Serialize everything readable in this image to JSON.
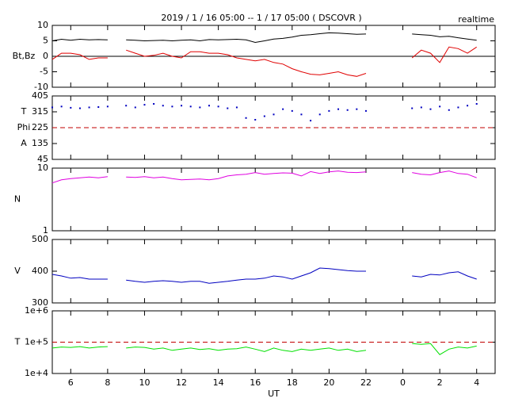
{
  "chart_data": [
    {
      "type": "line",
      "title": "2019 / 1 / 16  05:00 -- 1 / 17  05:00 ( DSCOVR )",
      "annotation": "realtime",
      "ylabel": [
        "Bt,Bz"
      ],
      "ylim": [
        -10,
        10
      ],
      "yticks": [
        10,
        5,
        0,
        -5,
        -10
      ],
      "zero_line": true,
      "series": [
        {
          "color": "#000000",
          "values": [
            5,
            5.5,
            5.2,
            5.5,
            5.3,
            5.4,
            5.3,
            null,
            5.3,
            5.2,
            5,
            5.1,
            5.2,
            5,
            5.2,
            5.3,
            5,
            5.4,
            5.3,
            5.4,
            5.5,
            5.3,
            4.5,
            5,
            5.6,
            5.8,
            6.2,
            6.8,
            7,
            7.3,
            7.6,
            7.5,
            7.3,
            7.1,
            7.2,
            null,
            null,
            null,
            null,
            7.2,
            7,
            6.8,
            6.3,
            6.5,
            6,
            5.6,
            5.2
          ]
        },
        {
          "color": "#e00000",
          "values": [
            -1,
            1,
            1,
            0.5,
            -1,
            -0.5,
            -0.5,
            null,
            2,
            1,
            0,
            0.3,
            1,
            0,
            -0.5,
            1.5,
            1.5,
            1,
            1,
            0.5,
            -0.5,
            -1,
            -1.5,
            -1,
            -2,
            -2.5,
            -4,
            -5,
            -5.8,
            -6,
            -5.5,
            -5,
            -6,
            -6.5,
            -5.5,
            null,
            null,
            null,
            null,
            -0.5,
            2,
            1,
            -2,
            3,
            2.5,
            1,
            3
          ]
        }
      ]
    },
    {
      "type": "scatter",
      "ylabel": [
        "T",
        "Phi",
        "A"
      ],
      "ylim": [
        45,
        405
      ],
      "yticks": [
        405,
        315,
        225,
        135,
        45
      ],
      "hline": 225,
      "hline_color": "#c00000",
      "series": [
        {
          "color": "#0000c0",
          "values": [
            340,
            345,
            338,
            335,
            340,
            342,
            345,
            null,
            350,
            340,
            355,
            360,
            350,
            345,
            350,
            345,
            340,
            350,
            345,
            335,
            340,
            280,
            270,
            290,
            300,
            330,
            320,
            300,
            265,
            300,
            320,
            330,
            325,
            330,
            320,
            null,
            null,
            null,
            null,
            335,
            340,
            330,
            345,
            325,
            340,
            350,
            360
          ]
        }
      ]
    },
    {
      "type": "line",
      "ylabel": [
        "N"
      ],
      "log": true,
      "ylim": [
        1,
        10
      ],
      "yticks": [
        10,
        1
      ],
      "series": [
        {
          "color": "#e000e0",
          "values": [
            5.8,
            6.5,
            6.8,
            7,
            7.2,
            7,
            7.3,
            null,
            7.2,
            7.1,
            7.3,
            7,
            7.2,
            6.8,
            6.5,
            6.6,
            6.7,
            6.5,
            6.8,
            7.5,
            7.8,
            8,
            8.5,
            8,
            8.2,
            8.4,
            8.3,
            7.5,
            8.8,
            8.2,
            8.7,
            9,
            8.6,
            8.5,
            8.7,
            null,
            null,
            null,
            null,
            8.5,
            8,
            7.8,
            8.5,
            9,
            8.2,
            8,
            7
          ]
        }
      ]
    },
    {
      "type": "line",
      "ylabel": [
        "V"
      ],
      "ylim": [
        300,
        500
      ],
      "yticks": [
        500,
        400,
        300
      ],
      "series": [
        {
          "color": "#0000c0",
          "values": [
            390,
            385,
            378,
            380,
            375,
            375,
            375,
            null,
            372,
            368,
            365,
            368,
            370,
            368,
            365,
            368,
            368,
            362,
            365,
            368,
            372,
            375,
            375,
            378,
            385,
            382,
            375,
            385,
            395,
            410,
            408,
            405,
            402,
            400,
            400,
            null,
            null,
            null,
            null,
            385,
            382,
            390,
            388,
            395,
            398,
            385,
            375
          ]
        }
      ]
    },
    {
      "type": "line",
      "ylabel": [
        "T"
      ],
      "log": true,
      "ylim": [
        10000,
        1000000
      ],
      "yticks": [
        {
          "value": 1000000,
          "label": "1e+6"
        },
        {
          "value": 100000,
          "label": "1e+5"
        },
        {
          "value": 10000,
          "label": "1e+4"
        }
      ],
      "hline": 100000,
      "hline_color": "#c00000",
      "xlabel": "UT",
      "xlim": [
        5,
        29
      ],
      "xticks": [
        6,
        8,
        10,
        12,
        14,
        16,
        18,
        20,
        22,
        {
          "value": 24,
          "label": "0"
        },
        {
          "value": 26,
          "label": "2"
        },
        {
          "value": 28,
          "label": "4"
        }
      ],
      "x": [
        5,
        5.5,
        6,
        6.5,
        7,
        7.5,
        8,
        8.5,
        9,
        9.5,
        10,
        10.5,
        11,
        11.5,
        12,
        12.5,
        13,
        13.5,
        14,
        14.5,
        15,
        15.5,
        16,
        16.5,
        17,
        17.5,
        18,
        18.5,
        19,
        19.5,
        20,
        20.5,
        21,
        21.5,
        22,
        22.5,
        23,
        23.5,
        24,
        24.5,
        25,
        25.5,
        26,
        26.5,
        27,
        27.5,
        28
      ],
      "series": [
        {
          "color": "#00e000",
          "values": [
            65000,
            70000,
            68000,
            72000,
            65000,
            70000,
            72000,
            null,
            65000,
            70000,
            68000,
            60000,
            65000,
            55000,
            60000,
            65000,
            58000,
            62000,
            55000,
            60000,
            62000,
            70000,
            60000,
            50000,
            65000,
            55000,
            50000,
            60000,
            55000,
            60000,
            65000,
            55000,
            60000,
            50000,
            55000,
            null,
            null,
            null,
            null,
            90000,
            85000,
            90000,
            40000,
            60000,
            70000,
            65000,
            75000
          ]
        }
      ]
    }
  ]
}
